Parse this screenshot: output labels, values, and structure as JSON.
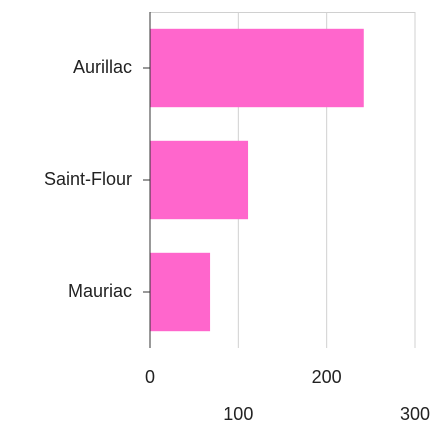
{
  "chart_data": {
    "type": "bar",
    "orientation": "horizontal",
    "categories": [
      "Aurillac",
      "Saint-Flour",
      "Mauriac"
    ],
    "values": [
      242,
      111,
      68
    ],
    "color": "#ff66cc",
    "xlim": [
      0,
      300
    ],
    "xticks": [
      0,
      100,
      200,
      300
    ],
    "grid": true
  }
}
